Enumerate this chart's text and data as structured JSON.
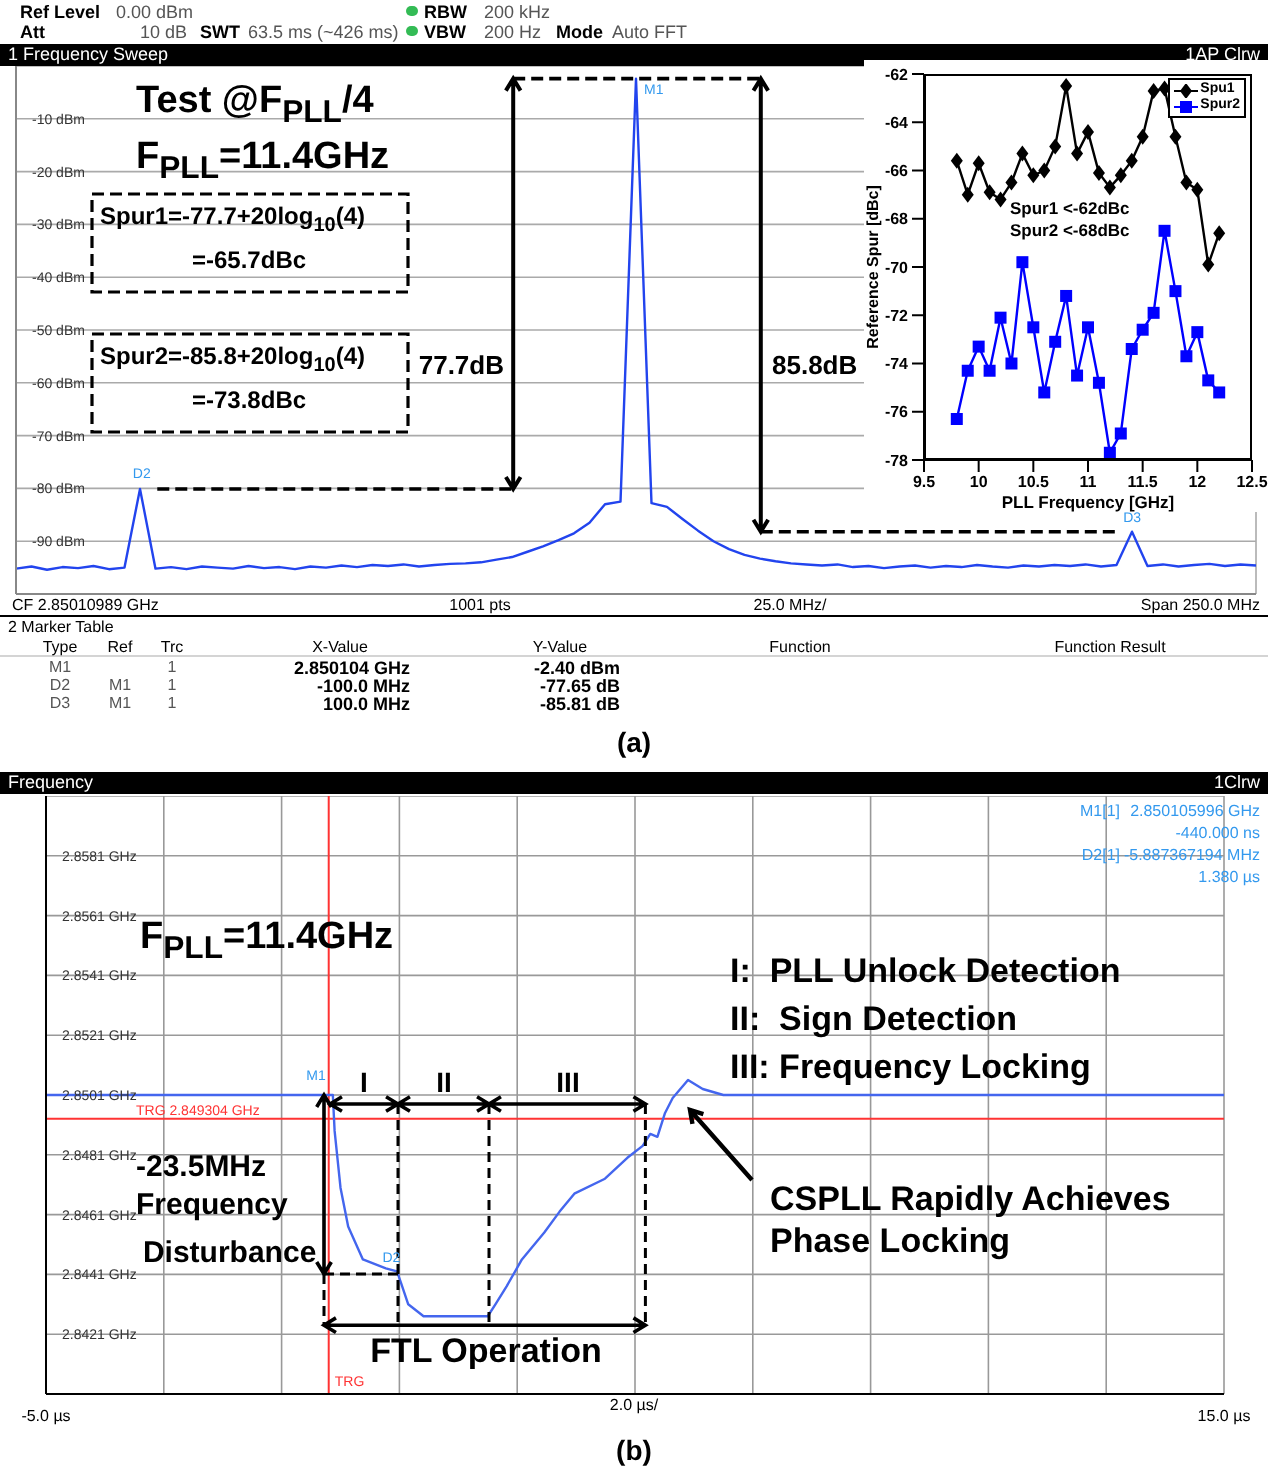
{
  "chart_data": [
    {
      "type": "line",
      "title": "1 Frequency Sweep",
      "tick_labels": "y",
      "grid": true,
      "color": "#2244ee",
      "categories": [
        null,
        null,
        null,
        null,
        null,
        null,
        null,
        null,
        null,
        null,
        null,
        null,
        null,
        null,
        null,
        null,
        null,
        null,
        null,
        null,
        null,
        null,
        null,
        null,
        null,
        null,
        null,
        null,
        null,
        null,
        null,
        null,
        null,
        null,
        null,
        null,
        null,
        null,
        null,
        null,
        null,
        null,
        null,
        null,
        null,
        null,
        null,
        null,
        null,
        null,
        null,
        null,
        null,
        null,
        null,
        null,
        null,
        null,
        null,
        null,
        null,
        null,
        null,
        null,
        null,
        null,
        null,
        null,
        null,
        null,
        null,
        null,
        null,
        null,
        null,
        null,
        null,
        null,
        null,
        null,
        null
      ],
      "values": [
        -95.2,
        -94.8,
        -95.4,
        -94.9,
        -95.1,
        -94.7,
        -95.3,
        -95.0,
        -80.1,
        -95.2,
        -94.9,
        -95.3,
        -94.8,
        -95.0,
        -95.2,
        -94.7,
        -95.1,
        -94.9,
        -95.3,
        -94.8,
        -95.0,
        -94.6,
        -94.9,
        -94.5,
        -94.7,
        -94.4,
        -94.8,
        -94.5,
        -94.3,
        -94.2,
        -94.0,
        -93.5,
        -93.0,
        -92.0,
        -91.0,
        -89.8,
        -88.5,
        -86.5,
        -83.0,
        -82.5,
        -2.4,
        -82.8,
        -83.5,
        -85.8,
        -88.0,
        -90.0,
        -91.5,
        -92.6,
        -93.3,
        -93.8,
        -94.2,
        -94.4,
        -94.6,
        -94.4,
        -94.9,
        -94.7,
        -95.1,
        -94.8,
        -94.6,
        -95.0,
        -94.7,
        -94.9,
        -94.5,
        -94.8,
        -95.0,
        -94.6,
        -94.8,
        -94.5,
        -94.7,
        -94.4,
        -94.8,
        -94.5,
        -88.2,
        -94.7,
        -94.4,
        -94.8,
        -94.5,
        -94.3,
        -94.7,
        -94.4,
        -94.6
      ],
      "ylim": [
        -100,
        0
      ],
      "yticks": [
        {
          "value": -90,
          "label": "-90 dBm"
        },
        {
          "value": -80,
          "label": "-80 dBm"
        },
        {
          "value": -70,
          "label": "-70 dBm"
        },
        {
          "value": -60,
          "label": "-60 dBm"
        },
        {
          "value": -50,
          "label": "-50 dBm"
        },
        {
          "value": -40,
          "label": "-40 dBm"
        },
        {
          "value": -30,
          "label": "-30 dBm"
        },
        {
          "value": -20,
          "label": "-20 dBm"
        },
        {
          "value": -10,
          "label": "-10 dBm"
        }
      ],
      "annotations": [
        "Ref Level",
        "0.00 dBm",
        "Att",
        "10 dB",
        "SWT",
        "63.5 ms (~426 ms)",
        "RBW",
        "200 kHz",
        "VBW",
        "200 Hz",
        "Mode",
        "Auto FFT",
        "1AP Clrw",
        "Test @F$_{PLL}$/4",
        "F$_{PLL}$=11.4GHz",
        "Spur1=-77.7+20log$_{10}$(4)",
        "=-65.7dBc",
        "Spur2=-85.8+20log$_{10}$(4)",
        "=-73.8dBc",
        "77.7dB",
        "85.8dB",
        "M1",
        "D2",
        "D3",
        "CF 2.85010989 GHz",
        "1001 pts",
        "25.0 MHz/",
        "Span 250.0 MHz",
        "2 Marker Table",
        "Type",
        "Ref",
        "Trc",
        "X-Value",
        "Y-Value",
        "Function",
        "Function Result",
        "M1",
        "1",
        "2.850104 GHz",
        "-2.40 dBm",
        "D2",
        "M1",
        "1",
        "-100.0 MHz",
        "-77.65 dB",
        "D3",
        "M1",
        "1",
        "100.0 MHz",
        "-85.81 dB",
        "(a)"
      ]
    },
    {
      "type": "line",
      "xlabel": "PLL Frequency [GHz]",
      "ylabel": "Reference Spur [dBc]",
      "legend": "top right",
      "x": [
        9.8,
        9.9,
        10.0,
        10.1,
        10.2,
        10.3,
        10.4,
        10.5,
        10.6,
        10.7,
        10.8,
        10.9,
        11.0,
        11.1,
        11.2,
        11.3,
        11.4,
        11.5,
        11.6,
        11.7,
        11.8,
        11.9,
        12.0,
        12.1,
        12.2
      ],
      "series": [
        {
          "name": "Spu1",
          "color": "#000000",
          "marker": "diamond",
          "values": [
            -65.6,
            -67.0,
            -65.7,
            -66.9,
            -67.2,
            -66.5,
            -65.3,
            -66.2,
            -66.0,
            -65.0,
            -62.5,
            -65.3,
            -64.4,
            -66.1,
            -66.7,
            -66.2,
            -65.6,
            -64.6,
            -62.7,
            -62.6,
            -64.6,
            -66.5,
            -66.8,
            -69.9,
            -68.6
          ]
        },
        {
          "name": "Spur2",
          "color": "#0000ff",
          "marker": "square",
          "values": [
            -76.3,
            -74.3,
            -73.3,
            -74.3,
            -72.1,
            -74.0,
            -69.8,
            -72.5,
            -75.2,
            -73.1,
            -71.2,
            -74.5,
            -72.5,
            -74.8,
            -77.7,
            -76.9,
            -73.4,
            -72.6,
            -71.9,
            -68.5,
            -71.0,
            -73.7,
            -72.7,
            -74.7,
            -75.2
          ]
        }
      ],
      "xlim": [
        9.5,
        12.5
      ],
      "xticks": [
        9.5,
        10,
        10.5,
        11,
        11.5,
        12,
        12.5
      ],
      "ylim": [
        -78,
        -62
      ],
      "yticks": [
        -78,
        -76,
        -74,
        -72,
        -70,
        -68,
        -66,
        -64,
        -62
      ],
      "annotations": [
        "Spur1 <-62dBc",
        "Spur2 <-68dBc"
      ]
    },
    {
      "type": "line",
      "title": "Frequency",
      "grid": true,
      "color": "#4466ee",
      "x": [
        -5,
        -2,
        -0.5,
        -0.13,
        -0.1,
        0.0,
        0.13,
        0.38,
        0.77,
        0.96,
        1.03,
        1.15,
        1.41,
        1.92,
        2.5,
        2.63,
        2.82,
        3.08,
        3.46,
        3.72,
        3.97,
        4.49,
        4.87,
        5.13,
        5.26,
        5.38,
        5.51,
        5.64,
        5.9,
        6.15,
        6.5,
        10,
        15
      ],
      "values": [
        2.8501,
        2.8501,
        2.8501,
        2.8501,
        2.8489,
        2.847,
        2.8457,
        2.8446,
        2.8443,
        2.8442,
        2.8438,
        2.8431,
        2.8427,
        2.8427,
        2.8427,
        2.8431,
        2.8437,
        2.8446,
        2.8455,
        2.8462,
        2.8468,
        2.8473,
        2.848,
        2.8484,
        2.8488,
        2.8487,
        2.8495,
        2.85,
        2.8506,
        2.8503,
        2.8501,
        2.8501,
        2.8501
      ],
      "xlim": [
        -5,
        15
      ],
      "xticks": [
        {
          "value": -5,
          "label": "-5.0 µs"
        },
        {
          "value": -3,
          "label": null
        },
        {
          "value": -1,
          "label": null
        },
        {
          "value": 1,
          "label": null
        },
        {
          "value": 3,
          "label": null
        },
        {
          "value": 5,
          "label": null
        },
        {
          "value": 7,
          "label": null
        },
        {
          "value": 9,
          "label": null
        },
        {
          "value": 11,
          "label": null
        },
        {
          "value": 13,
          "label": null
        },
        {
          "value": 15,
          "label": "15.0 µs"
        }
      ],
      "ylim": [
        2.8401,
        2.8601
      ],
      "yticks": [
        {
          "value": 2.8421,
          "label": "2.8421 GHz"
        },
        {
          "value": 2.8441,
          "label": "2.8441 GHz"
        },
        {
          "value": 2.8461,
          "label": "2.8461 GHz"
        },
        {
          "value": 2.8481,
          "label": "2.8481 GHz"
        },
        {
          "value": 2.8501,
          "label": "2.8501 GHz"
        },
        {
          "value": 2.8521,
          "label": "2.8521 GHz"
        },
        {
          "value": 2.8541,
          "label": "2.8541 GHz"
        },
        {
          "value": 2.8561,
          "label": "2.8561 GHz"
        },
        {
          "value": 2.8581,
          "label": "2.8581 GHz"
        }
      ],
      "ref_lines": [
        {
          "axis": "y",
          "value": 2.849304,
          "label": "TRG 2.849304 GHz",
          "color": "#ff3333"
        },
        {
          "axis": "x",
          "value": -0.2,
          "label": "TRG",
          "color": "#ff3333"
        }
      ],
      "annotations": [
        "1Clrw",
        "M1[1]",
        "2.850105996 GHz",
        "-440.000 ns",
        "D2[1]",
        "-5.887367194 MHz",
        "1.380 µs",
        "F$_{PLL}$=11.4GHz",
        "I:  PLL Unlock Detection",
        "II:  Sign Detection",
        "III: Frequency Locking",
        "I",
        "II",
        "III",
        "-23.5MHz",
        "Frequency",
        {
          "text": "Disturbance",
          "x": -0.3,
          "y": 2.8441
        },
        "CSPLL Rapidly Achieves",
        "Phase Locking",
        "FTL Operation",
        "2.0 µs/",
        "M1",
        {
          "text": "D2",
          "x": 0.96,
          "y": 2.8441
        },
        "(b)"
      ]
    }
  ]
}
